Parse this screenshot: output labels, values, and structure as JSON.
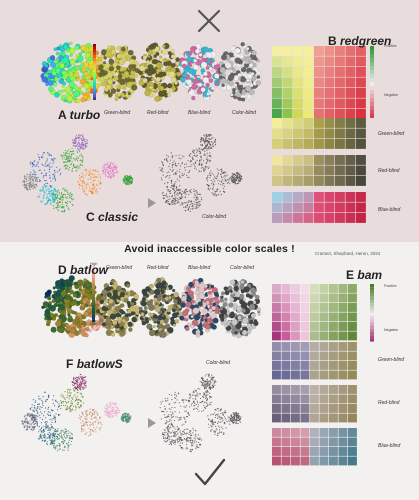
{
  "top": {
    "verdict_icon": "cross-icon",
    "panel_a": {
      "letter": "A",
      "name": "turbo"
    },
    "cvd_labels": [
      "Green-blind",
      "Red-blind",
      "Blue-blind",
      "Color-blind"
    ],
    "panel_b": {
      "letter": "B",
      "name": "redgreen",
      "top_label": "Positive",
      "bottom_label": "Negative",
      "sim_labels": [
        "Green-blind",
        "Red-blind",
        "Blue-blind"
      ]
    },
    "panel_c": {
      "letter": "C",
      "name": "classic",
      "sim_label": "Color-blind"
    }
  },
  "banner": "Avoid inaccessible color scales !",
  "credit": "Crameri, Shephard, Heron, 2024",
  "bottom": {
    "verdict_icon": "checkmark-icon",
    "panel_d": {
      "letter": "D",
      "name": "batlow",
      "scale_top": "High",
      "scale_bottom": "Low"
    },
    "cvd_labels": [
      "Green-blind",
      "Red-blind",
      "Blue-blind",
      "Color-blind"
    ],
    "panel_e": {
      "letter": "E",
      "name": "bam",
      "top_label": "Positive",
      "bottom_label": "Negative",
      "sim_labels": [
        "Green-blind",
        "Red-blind",
        "Blue-blind"
      ]
    },
    "panel_f": {
      "letter": "F",
      "name": "batlowS",
      "sim_label": "Color-blind"
    }
  },
  "colors": {
    "top_bg": "#e8dcdc",
    "bottom_bg": "#f3f1f0",
    "turbo": [
      "#30123b",
      "#4662d7",
      "#36aaf9",
      "#1ae4b6",
      "#72fe5e",
      "#c8ef34",
      "#faba39",
      "#f66b19",
      "#ca2a04",
      "#7a0403"
    ],
    "batlow": [
      "#011959",
      "#10475c",
      "#1c5a3e",
      "#4a6f2b",
      "#7a7d22",
      "#a9863a",
      "#d99260",
      "#faa6a4",
      "#fccdc7"
    ],
    "redgreen_pos": "#2f9a3a",
    "redgreen_neg": "#d8263a",
    "bam_pos": "#4e7a22",
    "bam_neg": "#9c1e6e"
  }
}
